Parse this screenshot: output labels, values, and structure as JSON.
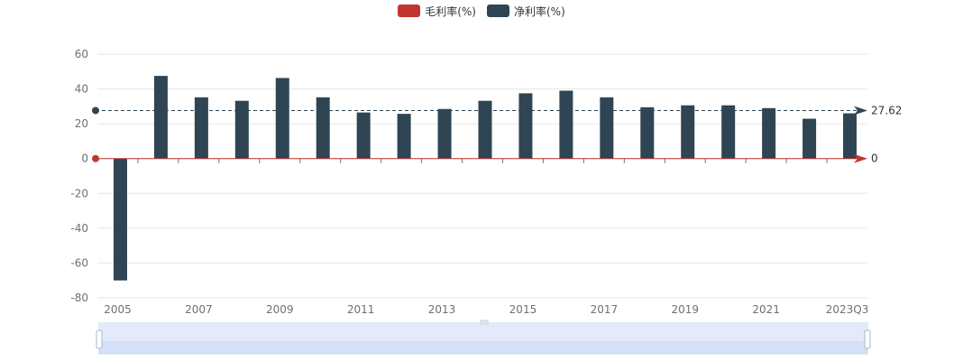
{
  "colors": {
    "gross": "#c23531",
    "net": "#2f4554",
    "grid": "#e6e6e6",
    "axis_text": "#6e7079",
    "zoom_fill": "#d3e0f8",
    "zoom_border": "#c7d4ee"
  },
  "legend": [
    {
      "name": "毛利率(%)",
      "color": "#c23531"
    },
    {
      "name": "净利率(%)",
      "color": "#2f4554"
    }
  ],
  "chart_data": {
    "type": "bar",
    "categories": [
      "2005",
      "2006",
      "2007",
      "2008",
      "2009",
      "2010",
      "2011",
      "2012",
      "2013",
      "2014",
      "2015",
      "2016",
      "2017",
      "2018",
      "2019",
      "2020",
      "2021",
      "2022",
      "2023Q3"
    ],
    "x_tick_labels": [
      "2005",
      "2007",
      "2009",
      "2011",
      "2013",
      "2015",
      "2017",
      "2019",
      "2021",
      "2023Q3"
    ],
    "series": [
      {
        "name": "毛利率(%)",
        "values": [
          0,
          0,
          0,
          0,
          0,
          0,
          0,
          0,
          0,
          0,
          0,
          0,
          0,
          0,
          0,
          0,
          0,
          0,
          0
        ]
      },
      {
        "name": "净利率(%)",
        "values": [
          -70,
          47.5,
          35.2,
          33.2,
          46.3,
          35.2,
          26.5,
          25.7,
          28.5,
          33.2,
          37.5,
          39,
          35.2,
          29.5,
          30.6,
          30.6,
          29,
          22.9,
          26
        ]
      }
    ],
    "ylim": [
      -80,
      60
    ],
    "yticks": [
      60,
      40,
      20,
      0,
      -20,
      -40,
      -60,
      -80
    ],
    "mark_lines": [
      {
        "series": "净利率(%)",
        "value": 27.62,
        "label": "27.62"
      },
      {
        "series": "毛利率(%)",
        "value": 0,
        "label": "0"
      }
    ],
    "grid": true,
    "legend_position": "top-center",
    "datazoom": {
      "start": 0,
      "end": 100
    }
  }
}
